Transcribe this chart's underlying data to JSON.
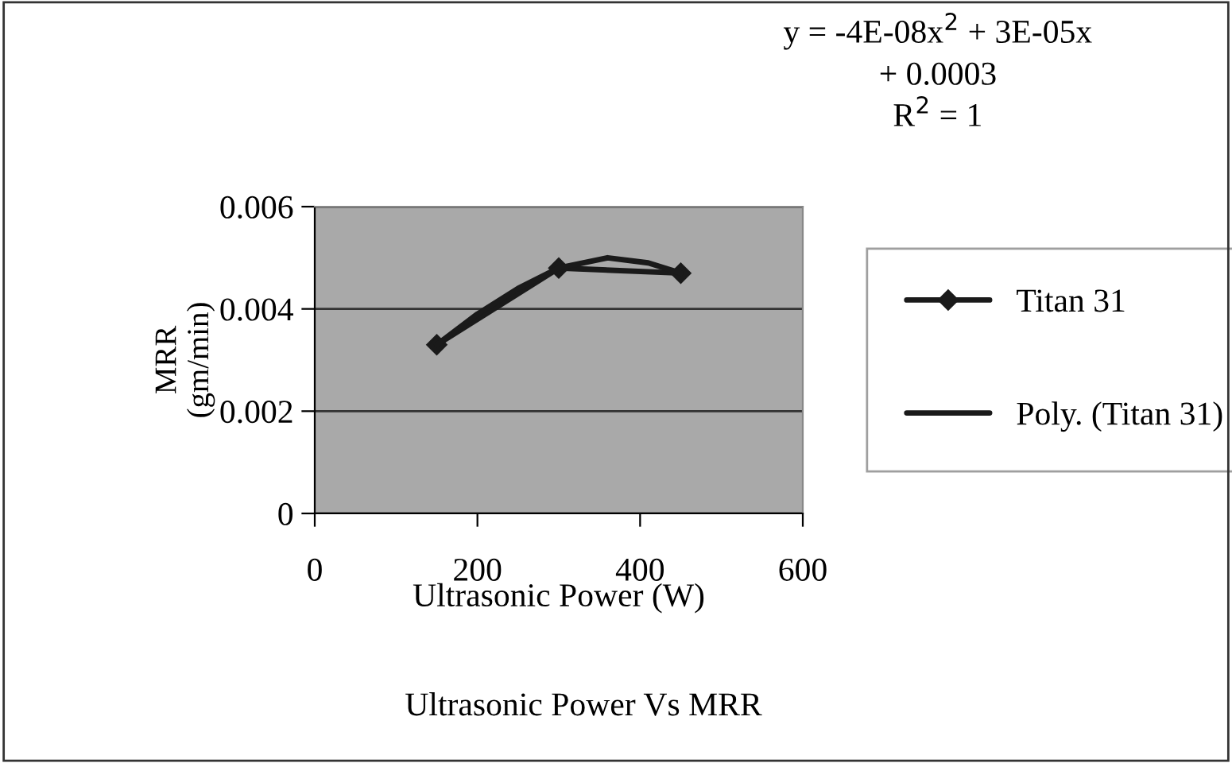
{
  "chart_data": {
    "type": "line",
    "title": "Ultrasonic Power Vs MRR",
    "xlabel": "Ultrasonic Power (W)",
    "ylabel": "MRR\n(gm/min)",
    "annotations": [
      "y = -4E-08x$^{2}$ + 3E-05x\n+ 0.0003\nR$^{2}$ = 1"
    ],
    "series": [
      {
        "name": "Titan 31",
        "color": "#1a1a1a",
        "x": [
          150,
          300,
          450
        ],
        "values": [
          0.0033,
          0.0048,
          0.0047
        ],
        "marker": "diamond",
        "line_style": "solid"
      },
      {
        "name": "Poly. (Titan 31)",
        "color": "#1a1a1a",
        "x": [
          150,
          200,
          250,
          300,
          360,
          410,
          450
        ],
        "values": [
          0.0033,
          0.0039,
          0.0044,
          0.0048,
          0.005,
          0.0049,
          0.0047
        ],
        "marker": "none",
        "line_style": "solid"
      }
    ],
    "xlim": [
      0,
      600
    ],
    "xticks": [
      0,
      200,
      400,
      600
    ],
    "ylim": [
      0,
      0.006
    ],
    "yticks": [
      0,
      {
        "value": 0.002,
        "label": "0.002"
      },
      {
        "value": 0.004,
        "label": "0.004"
      },
      {
        "value": 0.006,
        "label": "0.006"
      }
    ],
    "grid": "y",
    "legend": "right"
  }
}
